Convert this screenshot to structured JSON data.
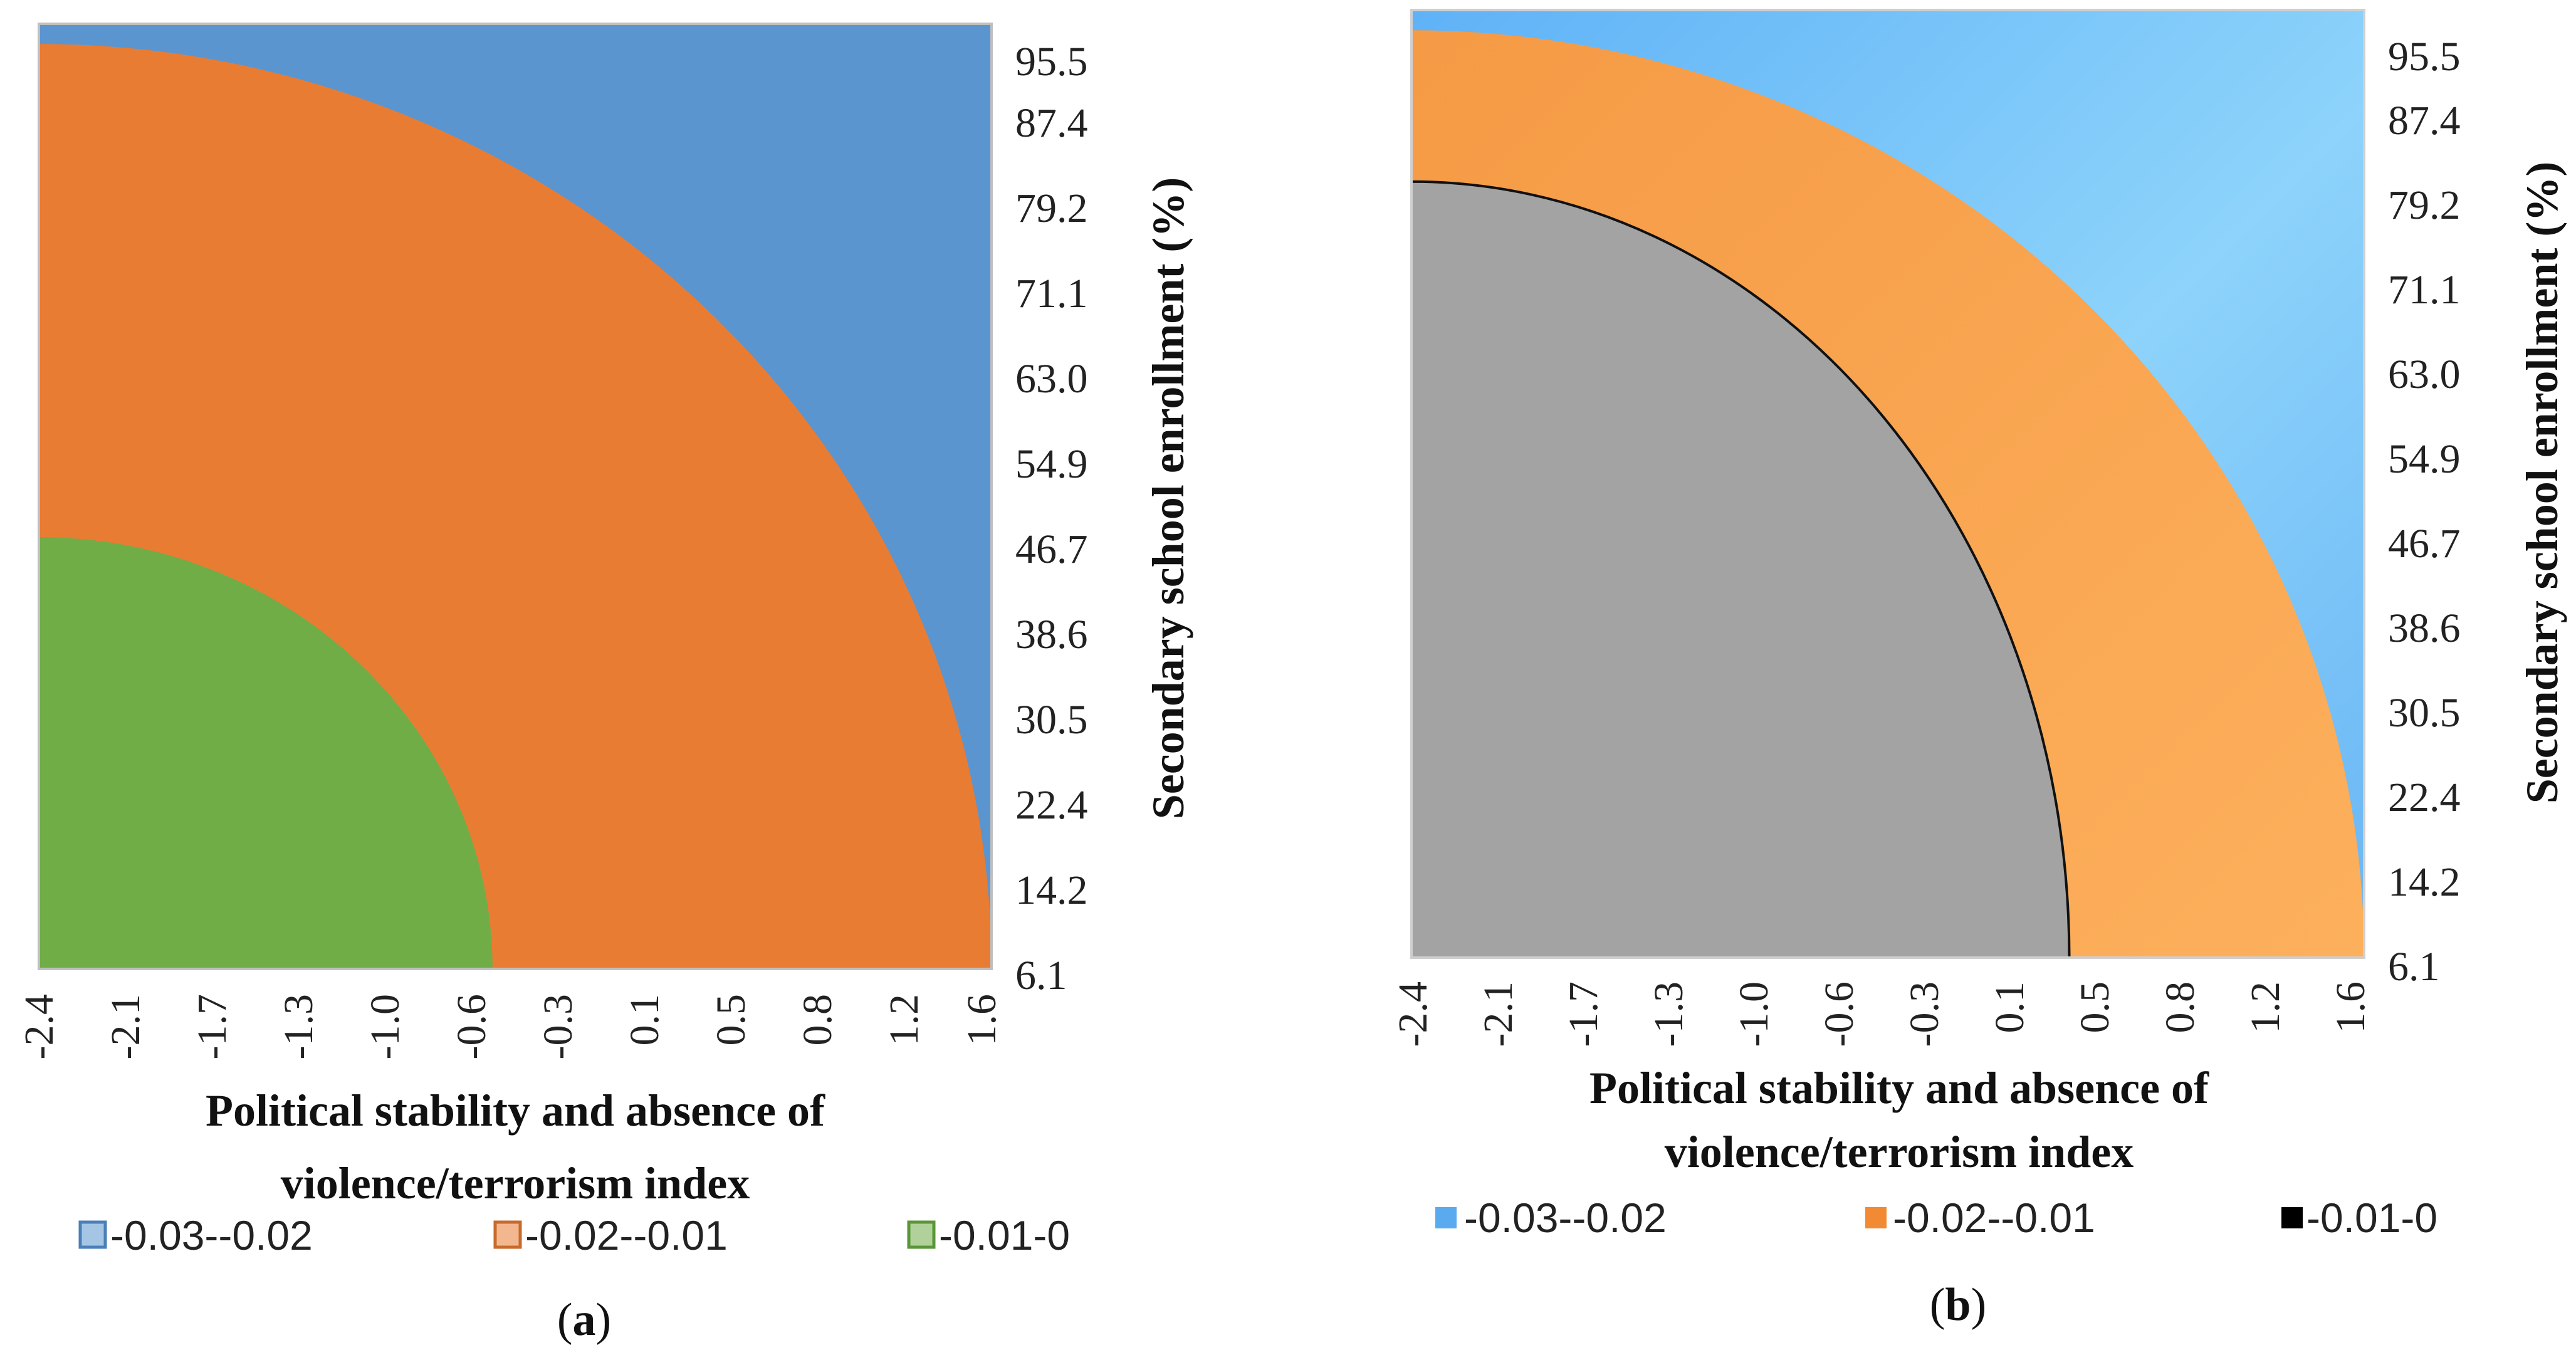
{
  "chart_data": [
    {
      "panel": "a",
      "type": "heatmap",
      "subtype": "contour",
      "xlabel": "Political stability and absence of violence/terrorism index",
      "xlabel_lines": [
        "Political stability and absence of",
        "violence/terrorism index"
      ],
      "ylabel": "Secondary school enrollment (%)",
      "x_ticks": [
        "-2.4",
        "-2.1",
        "-1.7",
        "-1.3",
        "-1.0",
        "-0.6",
        "-0.3",
        "0.1",
        "0.5",
        "0.8",
        "1.2",
        "1.6"
      ],
      "y_ticks": [
        "6.1",
        "14.2",
        "22.4",
        "30.5",
        "38.6",
        "46.7",
        "54.9",
        "63.0",
        "71.1",
        "79.2",
        "87.4",
        "95.5"
      ],
      "xlim": [
        -2.4,
        1.8
      ],
      "ylim": [
        6.1,
        100
      ],
      "boundaries": [
        {
          "between": [
            "-0.03--0.02",
            "-0.02--0.01"
          ],
          "x_at_ymin": 1.8,
          "y_at_xmin": 98.0
        },
        {
          "between": [
            "-0.02--0.01",
            "-0.01-0"
          ],
          "x_at_ymin": -0.4,
          "y_at_xmin": 49.0
        }
      ],
      "legend": [
        {
          "label": "-0.03--0.02",
          "color": "#5b95cf",
          "border": "#4a7fb8"
        },
        {
          "label": "-0.02--0.01",
          "color": "#e97c33",
          "border": "#c86a2b"
        },
        {
          "label": "-0.01-0",
          "color": "#70ad47",
          "border": "#5a9538"
        }
      ],
      "panel_label": {
        "open": "(",
        "letter": "a",
        "close": ")"
      }
    },
    {
      "panel": "b",
      "type": "heatmap",
      "subtype": "contour",
      "xlabel": "Political stability and absence of violence/terrorism index",
      "xlabel_lines": [
        "Political stability and absence of",
        "violence/terrorism index"
      ],
      "ylabel": "Secondary school enrollment (%)",
      "x_ticks": [
        "-2.4",
        "-2.1",
        "-1.7",
        "-1.3",
        "-1.0",
        "-0.6",
        "-0.3",
        "0.1",
        "0.5",
        "0.8",
        "1.2",
        "1.6"
      ],
      "y_ticks": [
        "6.1",
        "14.2",
        "22.4",
        "30.5",
        "38.6",
        "46.7",
        "54.9",
        "63.0",
        "71.1",
        "79.2",
        "87.4",
        "95.5"
      ],
      "xlim": [
        -2.4,
        1.8
      ],
      "ylim": [
        6.1,
        100
      ],
      "boundaries": [
        {
          "between": [
            "-0.03--0.02",
            "-0.02--0.01"
          ],
          "x_at_ymin": 1.8,
          "y_at_xmin": 98.0
        },
        {
          "between": [
            "-0.02--0.01",
            "-0.01-0"
          ],
          "x_at_ymin": 0.5,
          "y_at_xmin": 83.0
        }
      ],
      "legend": [
        {
          "label": "-0.03--0.02",
          "color": "#5aaaf0",
          "border": "#5aaaf0"
        },
        {
          "label": "-0.02--0.01",
          "color": "#f28a33",
          "border": "#f28a33"
        },
        {
          "label": "-0.01-0",
          "color": "#000000",
          "border": "#000000"
        }
      ],
      "panel_label": {
        "open": "(",
        "letter": "b",
        "close": ")"
      }
    }
  ]
}
